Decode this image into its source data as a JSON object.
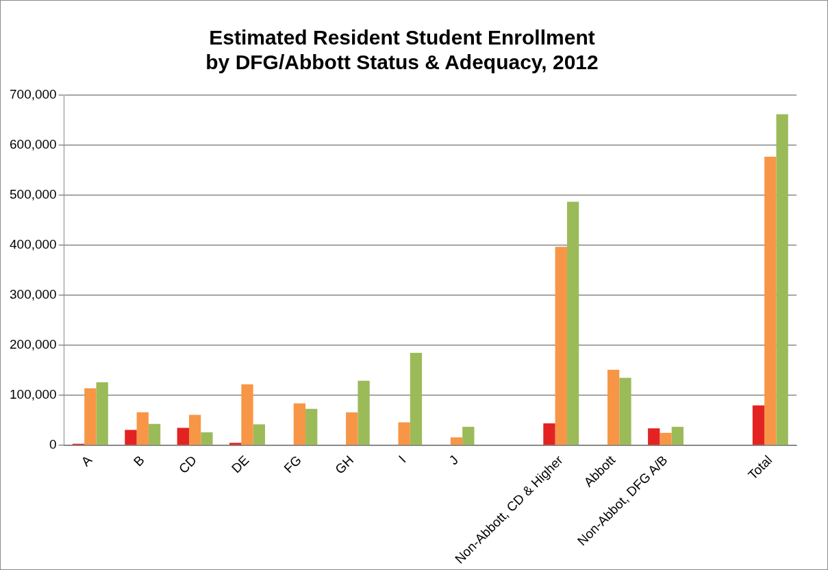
{
  "chart_data": {
    "type": "bar",
    "title": [
      "Estimated Resident Student Enrollment",
      "by DFG/Abbott Status & Adequacy, 2012"
    ],
    "categories": [
      "A",
      "B",
      "CD",
      "DE",
      "FG",
      "GH",
      "I",
      "J",
      null,
      "Non-Abbott, CD & Higher",
      "Abbott",
      "Non-Abbot, DFG A/B",
      null,
      "Total"
    ],
    "series": [
      {
        "color": "#e32322",
        "values": [
          3000,
          31000,
          35000,
          5000,
          0,
          0,
          0,
          0,
          null,
          44000,
          0,
          34000,
          null,
          80000
        ]
      },
      {
        "color": "#f79646",
        "values": [
          114000,
          66000,
          61000,
          122000,
          84000,
          66000,
          46000,
          16000,
          null,
          397000,
          151000,
          25000,
          null,
          577000
        ]
      },
      {
        "color": "#9bbb59",
        "values": [
          126000,
          43000,
          26000,
          42000,
          73000,
          129000,
          185000,
          37000,
          null,
          487000,
          135000,
          37000,
          null,
          662000
        ]
      }
    ],
    "ylim": [
      0,
      700000
    ],
    "yticks": [
      0,
      {
        "value": 100000,
        "label": "100,000"
      },
      {
        "value": 200000,
        "label": "200,000"
      },
      {
        "value": 300000,
        "label": "300,000"
      },
      {
        "value": 400000,
        "label": "400,000"
      },
      {
        "value": 500000,
        "label": "500,000"
      },
      {
        "value": 600000,
        "label": "600,000"
      },
      {
        "value": 700000,
        "label": "700,000"
      }
    ],
    "grid": "y",
    "legend": false
  }
}
